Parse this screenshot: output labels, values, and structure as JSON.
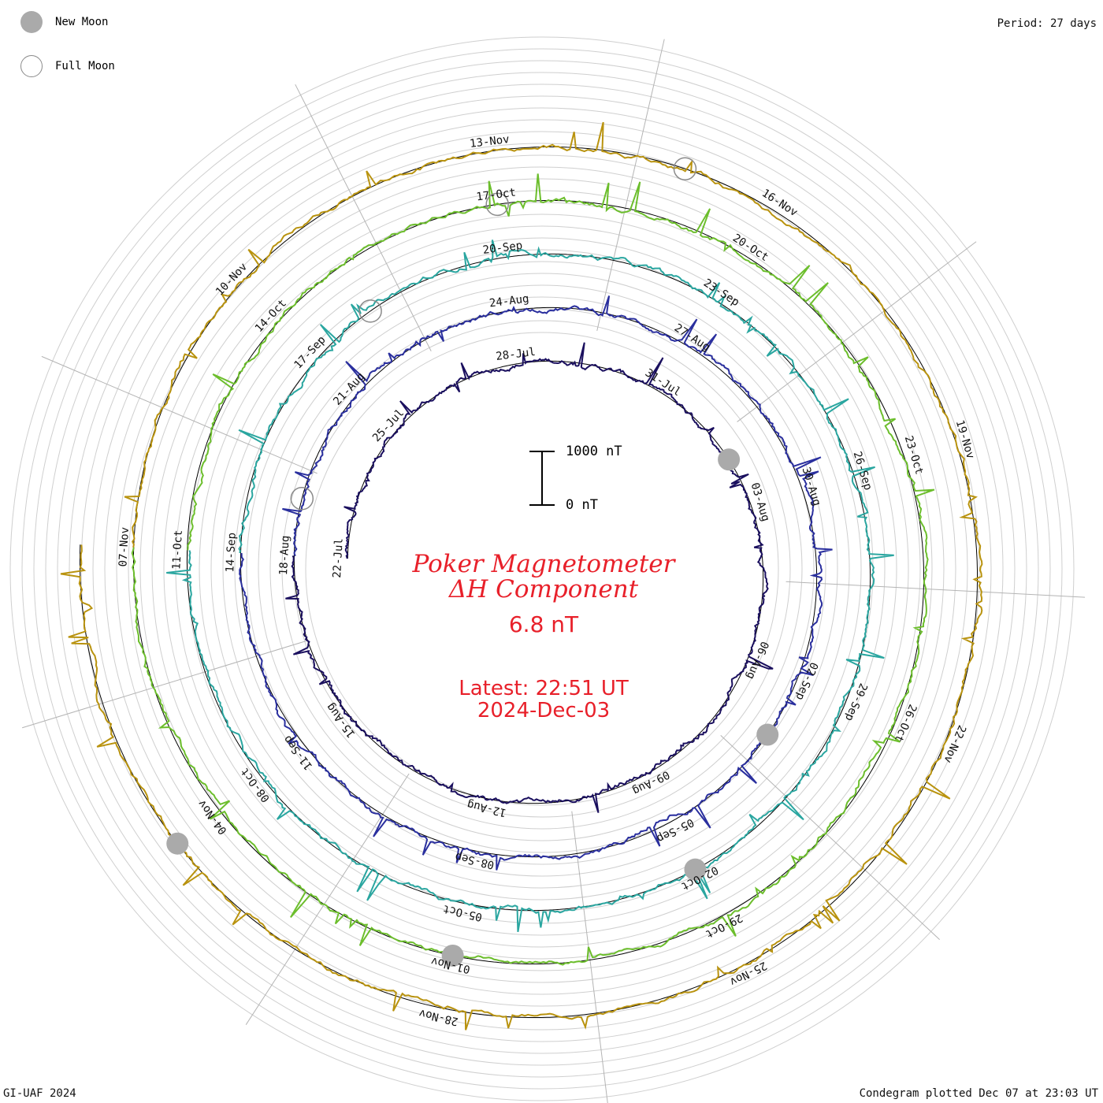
{
  "legend": {
    "new_moon": "New Moon",
    "full_moon": "Full Moon"
  },
  "period": "Period: 27 days",
  "title_line1": "Poker Magnetometer",
  "title_line2": "ΔH Component",
  "current_value": "6.8 nT",
  "latest_time": "Latest: 22:51 UT",
  "latest_date": "2024-Dec-03",
  "scale": {
    "top_label": "1000 nT",
    "bottom_label": "0 nT"
  },
  "footer_left": "GI-UAF 2024",
  "footer_right": "Condegram plotted Dec 07 at 23:03 UT",
  "colors": {
    "spokes": "#b4b4b4",
    "title": "#e8202a",
    "moon_new": "#aaaaaa",
    "moon_full_stroke": "#8a8a8a",
    "turns": [
      "#1a0f5e",
      "#2a2f9e",
      "#2aa6a0",
      "#6cbe2c",
      "#b9930f",
      "#b44a14"
    ]
  },
  "chart_data": {
    "type": "line",
    "period_days": 27,
    "series": [
      {
        "color": "#1a0f5e",
        "date_labels": [
          "22-Jul",
          "25-Jul",
          "28-Jul",
          "31-Jul",
          "03-Aug",
          "06-Aug",
          "09-Aug",
          "12-Aug",
          "15-Aug"
        ]
      },
      {
        "color": "#2a2f9e",
        "date_labels": [
          "18-Aug",
          "21-Aug",
          "24-Aug",
          "27-Aug",
          "30-Aug",
          "02-Sep",
          "05-Sep",
          "08-Sep",
          "11-Sep"
        ]
      },
      {
        "color": "#2aa6a0",
        "date_labels": [
          "14-Sep",
          "17-Sep",
          "20-Sep",
          "23-Sep",
          "26-Sep",
          "29-Sep",
          "02-Oct",
          "05-Oct",
          "08-Oct"
        ]
      },
      {
        "color": "#6cbe2c",
        "date_labels": [
          "11-Oct",
          "14-Oct",
          "17-Oct",
          "20-Oct",
          "23-Oct",
          "26-Oct",
          "29-Oct",
          "01-Nov",
          "04-Nov"
        ]
      },
      {
        "color": "#b9930f",
        "date_labels": [
          "07-Nov",
          "10-Nov",
          "13-Nov",
          "16-Nov",
          "19-Nov",
          "22-Nov",
          "25-Nov",
          "28-Nov"
        ]
      }
    ],
    "moon_phases": {
      "new": [
        "02-Aug",
        "03-Sep",
        "02-Oct",
        "01-Nov",
        "01-Dec"
      ],
      "full": [
        "21-Jul",
        "19-Aug",
        "18-Sep",
        "17-Oct",
        "15-Nov"
      ]
    },
    "scale_bar_nT": [
      0,
      1000
    ]
  }
}
